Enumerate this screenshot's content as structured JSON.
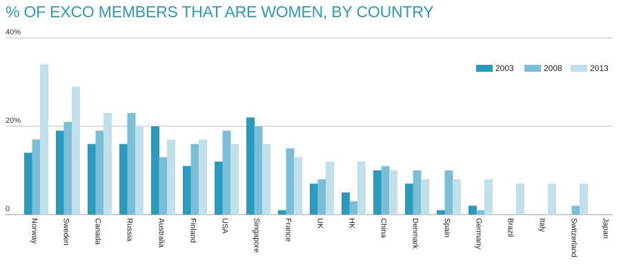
{
  "chart_data": {
    "type": "bar",
    "title": "% OF EXCO MEMBERS THAT ARE WOMEN, BY COUNTRY",
    "xlabel": "",
    "ylabel": "",
    "ylim": [
      0,
      40
    ],
    "yticks": [
      "0",
      "20%",
      "40%"
    ],
    "grid": true,
    "legend_position": "top-right",
    "colors": [
      "#2a9bbd",
      "#7bbfd6",
      "#c0e0eb"
    ],
    "categories": [
      "Norway",
      "Sweden",
      "Canada",
      "Russia",
      "Australia",
      "Finland",
      "USA",
      "Singapore",
      "France",
      "UK",
      "HK",
      "China",
      "Denmark",
      "Spain",
      "Germany",
      "Brazil",
      "Italy",
      "Switzerland",
      "Japan"
    ],
    "series": [
      {
        "name": "2003",
        "values": [
          14,
          19,
          16,
          16,
          20,
          11,
          12,
          22,
          1,
          7,
          5,
          10,
          7,
          1,
          2,
          0,
          0,
          0,
          0
        ]
      },
      {
        "name": "2008",
        "values": [
          17,
          21,
          19,
          23,
          13,
          16,
          19,
          20,
          15,
          8,
          3,
          11,
          10,
          10,
          1,
          0,
          0,
          2,
          0
        ]
      },
      {
        "name": "2013",
        "values": [
          34,
          29,
          23,
          20,
          17,
          17,
          16,
          16,
          13,
          12,
          12,
          10,
          8,
          8,
          8,
          7,
          7,
          7,
          0
        ]
      }
    ]
  }
}
